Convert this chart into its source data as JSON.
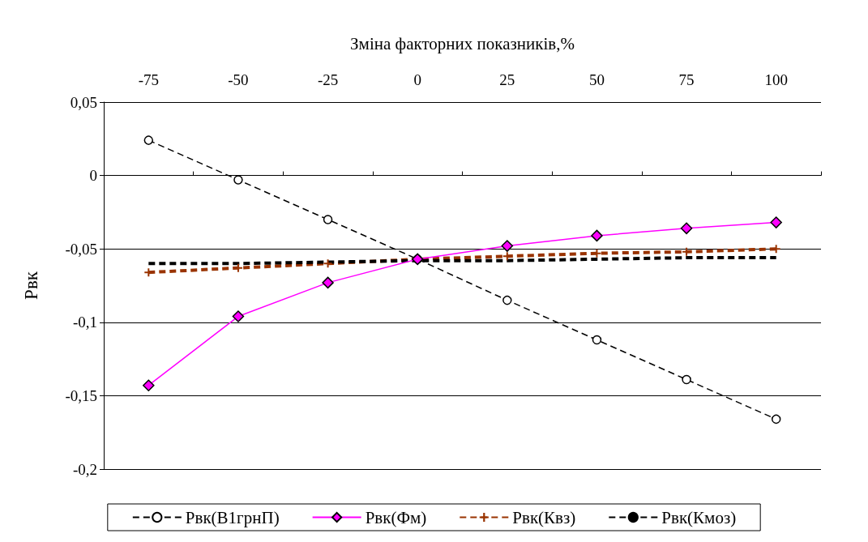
{
  "chart_data": {
    "type": "line",
    "xlabel": "Зміна факторних показників,%",
    "ylabel": "Рвк",
    "categories": [
      "-75",
      "-50",
      "-25",
      "0",
      "25",
      "50",
      "75",
      "100"
    ],
    "series": [
      {
        "name": "Рвк(В1грнП)",
        "color": "#000000",
        "marker": "circle",
        "line_style": "dashed",
        "values": [
          0.024,
          -0.003,
          -0.03,
          -0.057,
          -0.085,
          -0.112,
          -0.139,
          -0.166
        ]
      },
      {
        "name": "Рвк(Фм)",
        "color": "#ff00ff",
        "marker": "diamond",
        "line_style": "solid",
        "values": [
          -0.143,
          -0.096,
          -0.073,
          -0.057,
          -0.048,
          -0.041,
          -0.036,
          -0.032
        ]
      },
      {
        "name": "Рвк(Квз)",
        "color": "#993300",
        "marker": "cross",
        "line_style": "dashed",
        "values": [
          -0.066,
          -0.063,
          -0.06,
          -0.057,
          -0.055,
          -0.053,
          -0.052,
          -0.05
        ]
      },
      {
        "name": "Рвк(Кмоз)",
        "color": "#000000",
        "marker": "none",
        "line_style": "dashed",
        "values": [
          -0.06,
          -0.06,
          -0.059,
          -0.058,
          -0.058,
          -0.057,
          -0.056,
          -0.056
        ]
      }
    ],
    "ylim": [
      -0.2,
      0.05
    ],
    "yticks": [
      {
        "value": 0.05,
        "label": "0,05"
      },
      0,
      {
        "value": -0.05,
        "label": "-0,05"
      },
      {
        "value": -0.1,
        "label": "-0,1"
      },
      {
        "value": -0.15,
        "label": "-0,15"
      },
      {
        "value": -0.2,
        "label": "-0,2"
      }
    ],
    "grid": "y",
    "legend": "bottom"
  }
}
